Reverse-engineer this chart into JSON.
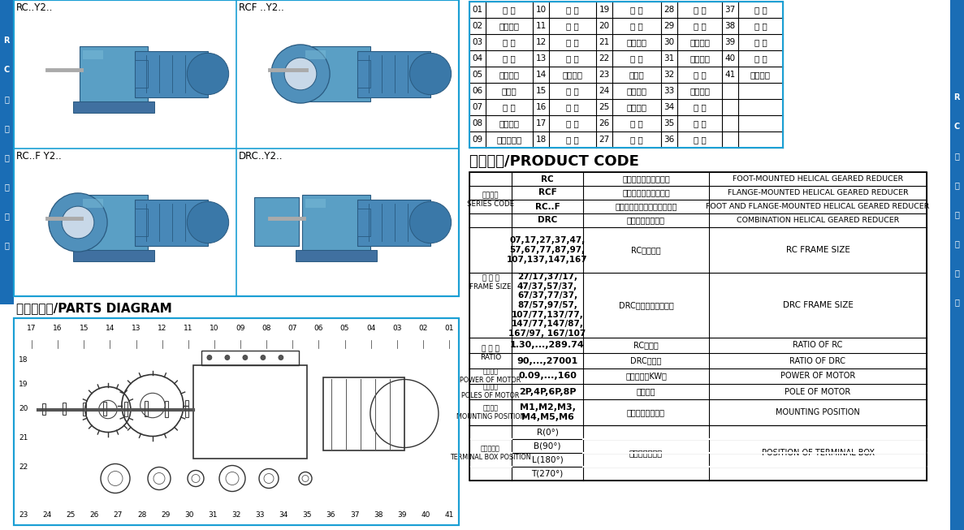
{
  "background_color": "#ffffff",
  "border_color": "#1a9fd4",
  "sidebar_bg": "#1a6db5",
  "sidebar_text_color": "#ffffff",
  "sidebar_chars": [
    "R",
    "C",
    "硬",
    "齿",
    "面",
    "减",
    "速",
    "机"
  ],
  "product_labels": [
    "RC..Y2..",
    "RCF ..Y2..",
    "RC..F Y2..",
    "DRC..Y2.."
  ],
  "parts_title": "部件分解图/PARTS DIAGRAM",
  "parts_numbers_top": [
    "17",
    "16",
    "15",
    "14",
    "13",
    "12",
    "11",
    "10",
    "09",
    "08",
    "07",
    "06",
    "05",
    "04",
    "03",
    "02",
    "01"
  ],
  "parts_numbers_left": [
    "18",
    "19",
    "20",
    "21",
    "22"
  ],
  "parts_numbers_bottom": [
    "23",
    "24",
    "25",
    "26",
    "27",
    "28",
    "29",
    "30",
    "31",
    "32",
    "33",
    "34",
    "35",
    "36",
    "37",
    "38",
    "39",
    "40",
    "41"
  ],
  "parts_table": [
    [
      "01",
      "电 机",
      "10",
      "盖 板",
      "19",
      "轴 承",
      "28",
      "平 键",
      "37",
      "平 键"
    ],
    [
      "02",
      "透气螺塞",
      "11",
      "纸 垫",
      "20",
      "平 键",
      "29",
      "齿 轮",
      "38",
      "齿 轮"
    ],
    [
      "03",
      "螺 母",
      "12",
      "箱 体",
      "21",
      "孔用挡圈",
      "30",
      "平面油封",
      "39",
      "垫 圈"
    ],
    [
      "04",
      "平 键",
      "13",
      "油 塞",
      "22",
      "油 封",
      "31",
      "孔用挡圈",
      "40",
      "轴 承"
    ],
    [
      "05",
      "双头螺柱",
      "14",
      "轴用挡圈",
      "23",
      "输出轴",
      "32",
      "轴 承",
      "41",
      "轴用挡圈"
    ],
    [
      "06",
      "甮油盘",
      "15",
      "轴 承",
      "24",
      "平面油封",
      "33",
      "孔用挡圈",
      "",
      ""
    ],
    [
      "07",
      "齿 轮",
      "16",
      "齿 轮",
      "25",
      "孔用挡圈",
      "34",
      "轴 齿",
      "",
      ""
    ],
    [
      "08",
      "吸环螺栋",
      "17",
      "垫 圈",
      "26",
      "轴 承",
      "35",
      "轴 承",
      "",
      ""
    ],
    [
      "09",
      "外六角螺钉",
      "18",
      "平 键",
      "27",
      "轴 齿",
      "36",
      "轴 承",
      "",
      ""
    ]
  ],
  "product_code_title": "代号指示/PRODUCT CODE",
  "series_label_cn": "系列代号",
  "series_label_en": "SERIES CODE",
  "frame_label_cn": "机 座 号",
  "frame_label_en": "FRAME SIZE",
  "series_rows": [
    {
      "code": "RC",
      "cn": "底脚安装斜齿轮减速机",
      "en": "FOOT-MOUNTED HELICAL GEARED REDUCER"
    },
    {
      "code": "RCF",
      "cn": "法兰安装斜齿轮减速机",
      "en": "FLANGE-MOUNTED HELICAL GEARED REDUCER"
    },
    {
      "code": "RC..F",
      "cn": "底脚及法兰安装斜齿轮减速机",
      "en": "FOOT AND FLANGE-MOUNTED HELICAL GEARED REDUCER"
    },
    {
      "code": "DRC",
      "cn": "双联体齿轮减速机",
      "en": "COMBINATION HELICAL GEARED REDUCER"
    }
  ],
  "frame_rc_values": "07,17,27,37,47,\n57,67,77,87,97,\n107,137,147,167",
  "frame_rc_cn": "RC机座规格",
  "frame_rc_en": "RC FRAME SIZE",
  "frame_drc_values": "27/17,37/17,\n47/37,57/37,\n67/37,77/37,\n87/57,97/57,\n107/77,137/77,\n147/77,147/87,\n167/97, 167/107",
  "frame_drc_cn": "DRC联体机座组合规格",
  "frame_drc_en": "DRC FRAME SIZE",
  "ratio_label_cn": "传 动 比",
  "ratio_label_en": "RATIO",
  "ratio_rc_val": "1.30,...,289.74",
  "ratio_rc_cn": "RC减速比",
  "ratio_rc_en": "RATIO OF RC",
  "ratio_drc_val": "90,...,27001",
  "ratio_drc_cn": "DRC减速比",
  "ratio_drc_en": "RATIO OF DRC",
  "power_label_cn": "电机功率",
  "power_label_en": "POWER OF MOTOR",
  "power_val": "0.09,...,160",
  "power_cn": "电机功率（KW）",
  "power_en": "POWER OF MOTOR",
  "poles_label_cn": "电机极数",
  "poles_label_en": "POLES OF MOTOR",
  "poles_val": "2P,4P,6P,8P",
  "poles_cn": "电机极数",
  "poles_en": "POLE OF MOTOR",
  "mount_label_cn": "安装方位",
  "mount_label_en": "MOUNTING POSITION",
  "mount_val": "M1,M2,M3,\nM4,M5,M6",
  "mount_cn": "减速机的安装方位",
  "mount_en": "MOUNTING POSITION",
  "term_label_cn": "接线盒方位",
  "term_label_en": "TERMINAL BOX POSITION",
  "term_vals": [
    "R(0°)",
    "B(90°)",
    "L(180°)",
    "T(270°)"
  ],
  "term_cn": "电机接线盒方位",
  "term_en": "POSITION OF TERMINAL BOX"
}
